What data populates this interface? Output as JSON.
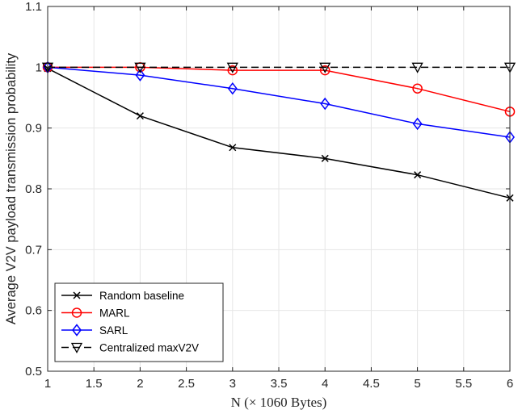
{
  "chart_data": {
    "type": "line",
    "xlabel": "N (× 1060 Bytes)",
    "ylabel": "Average V2V payload transmission probability",
    "xlim": [
      1,
      6
    ],
    "ylim": [
      0.5,
      1.1
    ],
    "xticks": [
      1,
      1.5,
      2,
      2.5,
      3,
      3.5,
      4,
      4.5,
      5,
      5.5,
      6
    ],
    "xtick_labels": [
      "1",
      "1.5",
      "2",
      "2.5",
      "3",
      "3.5",
      "4",
      "4.5",
      "5",
      "5.5",
      "6"
    ],
    "yticks": [
      0.5,
      0.6,
      0.7,
      0.8,
      0.9,
      1,
      1.1
    ],
    "ytick_labels": [
      "0.5",
      "0.6",
      "0.7",
      "0.8",
      "0.9",
      "1",
      "1.1"
    ],
    "grid": true,
    "legend_position": "bottom-left",
    "x": [
      1,
      2,
      3,
      4,
      5,
      6
    ],
    "series": [
      {
        "name": "Random baseline",
        "values": [
          0.998,
          0.92,
          0.868,
          0.85,
          0.823,
          0.785
        ],
        "color": "#000000",
        "marker": "x",
        "dashed": false
      },
      {
        "name": "MARL",
        "values": [
          1.0,
          1.0,
          0.995,
          0.995,
          0.965,
          0.927
        ],
        "color": "#ff0000",
        "marker": "circle",
        "dashed": false
      },
      {
        "name": "SARL",
        "values": [
          1.0,
          0.987,
          0.965,
          0.94,
          0.907,
          0.885
        ],
        "color": "#0000ff",
        "marker": "diamond",
        "dashed": false
      },
      {
        "name": "Centralized maxV2V",
        "values": [
          1.0,
          1.0,
          1.0,
          1.0,
          1.0,
          1.0
        ],
        "color": "#000000",
        "marker": "triangle-down",
        "dashed": true
      }
    ]
  }
}
